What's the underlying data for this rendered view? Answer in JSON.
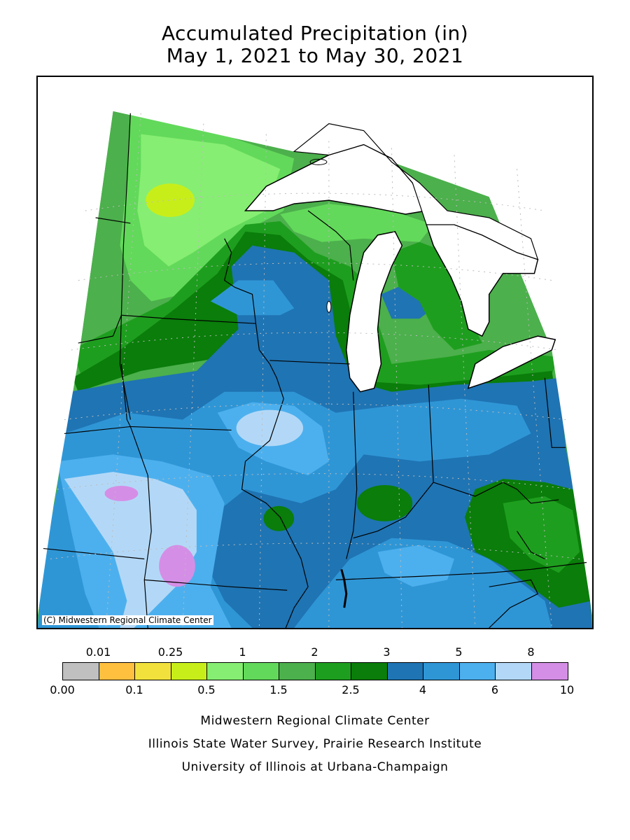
{
  "title": {
    "line1": "Accumulated Precipitation (in)",
    "line2": "May 1, 2021 to May 30, 2021"
  },
  "map": {
    "copyright": "(C) Midwestern Regional Climate Center",
    "lake_color": "#ffffff",
    "border_color": "#000000"
  },
  "legend": {
    "top_labels": [
      "0.01",
      "0.25",
      "1",
      "2",
      "3",
      "5",
      "8"
    ],
    "bottom_labels": [
      "0.00",
      "0.1",
      "0.5",
      "1.5",
      "2.5",
      "4",
      "6",
      "10"
    ],
    "colors": [
      "#c0c0c0",
      "#ffbf3f",
      "#f2e13c",
      "#c8ee1a",
      "#86ee72",
      "#62d95a",
      "#4cb04c",
      "#1e9e1e",
      "#0a7d0a",
      "#1f74b3",
      "#2f96d6",
      "#4db0ee",
      "#b3d8f7",
      "#d58ee6"
    ]
  },
  "footer": {
    "line1": "Midwestern Regional Climate Center",
    "line2": "Illinois State Water Survey, Prairie Research Institute",
    "line3": "University of Illinois at Urbana-Champaign"
  }
}
